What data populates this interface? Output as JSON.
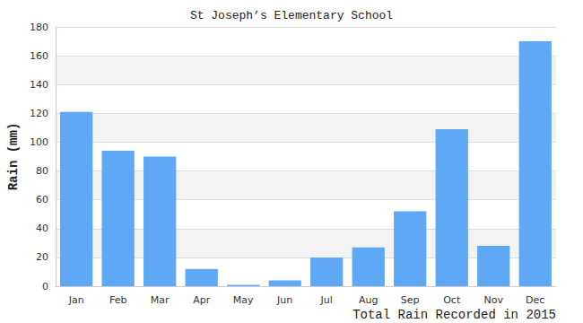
{
  "chart_data": {
    "type": "bar",
    "title": "St Joseph’s Elementary School",
    "ylabel": "Rain (mm)",
    "xlabel": "Total Rain Recorded in 2015",
    "categories": [
      "Jan",
      "Feb",
      "Mar",
      "Apr",
      "May",
      "Jun",
      "Jul",
      "Aug",
      "Sep",
      "Oct",
      "Nov",
      "Dec"
    ],
    "values": [
      121,
      94,
      90,
      12,
      1,
      4,
      20,
      27,
      52,
      109,
      28,
      170
    ],
    "color": "#5fa8f5",
    "ylim": [
      0,
      180
    ],
    "yticks": [
      0,
      20,
      40,
      60,
      80,
      100,
      120,
      140,
      160,
      180
    ],
    "grid": true
  }
}
